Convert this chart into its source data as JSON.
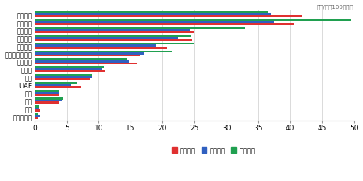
{
  "categories": [
    "アメリカ",
    "スペイン",
    "フランス",
    "イタリア",
    "イギリス",
    "オーストラリア",
    "オランダ",
    "ドイツ",
    "韓国",
    "UAE",
    "中国",
    "タイ",
    "日本",
    "マレーシア"
  ],
  "reiwa3": [
    42.0,
    40.5,
    24.9,
    24.6,
    20.7,
    16.5,
    16.0,
    11.0,
    8.7,
    7.2,
    3.8,
    3.8,
    0.8,
    0.5
  ],
  "reiwa2": [
    37.0,
    37.5,
    24.2,
    22.5,
    19.0,
    17.2,
    14.8,
    10.4,
    9.0,
    5.7,
    3.7,
    4.2,
    0.6,
    0.7
  ],
  "reiwa1": [
    36.5,
    49.5,
    33.0,
    24.5,
    25.0,
    21.5,
    14.5,
    10.8,
    9.0,
    6.5,
    3.8,
    4.4,
    0.6,
    0.5
  ],
  "color_reiwa3": "#e03030",
  "color_reiwa2": "#3060c0",
  "color_reiwa1": "#20a050",
  "ylabel": "（人/人口100万人）",
  "xlim": [
    0,
    50
  ],
  "xticks": [
    0,
    5,
    10,
    15,
    20,
    25,
    30,
    35,
    40,
    45,
    50
  ],
  "legend_labels": [
    "令和３年",
    "令和２年",
    "令和元年"
  ],
  "bar_height": 0.26,
  "figsize": [
    4.5,
    2.26
  ],
  "dpi": 100,
  "background_color": "#ffffff",
  "grid_color": "#cccccc"
}
